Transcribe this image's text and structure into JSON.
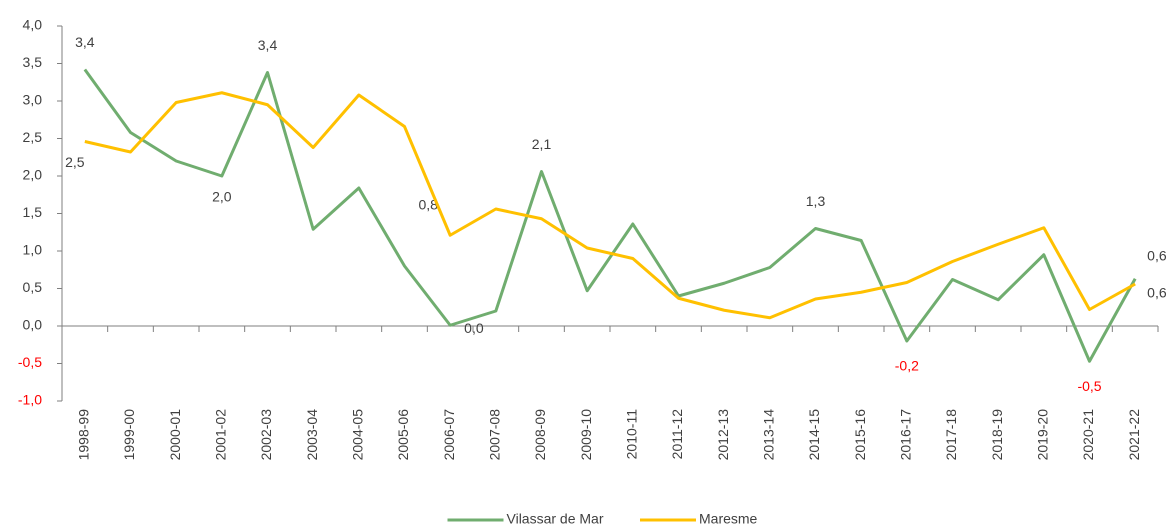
{
  "chart_data": {
    "type": "line",
    "categories": [
      "1998-99",
      "1999-00",
      "2000-01",
      "2001-02",
      "2002-03",
      "2003-04",
      "2004-05",
      "2005-06",
      "2006-07",
      "2007-08",
      "2008-09",
      "2009-10",
      "2010-11",
      "2011-12",
      "2012-13",
      "2013-14",
      "2014-15",
      "2015-16",
      "2016-17",
      "2017-18",
      "2018-19",
      "2019-20",
      "2020-21",
      "2021-22"
    ],
    "series": [
      {
        "name": "Vilassar de Mar",
        "color": "#70ad6f",
        "values": [
          3.42,
          2.58,
          2.2,
          2.0,
          3.38,
          1.29,
          1.84,
          0.8,
          0.01,
          0.2,
          2.06,
          0.47,
          1.36,
          0.4,
          0.57,
          0.78,
          1.3,
          1.14,
          -0.2,
          0.62,
          0.35,
          0.95,
          -0.47,
          0.63
        ],
        "value_labels": [
          "3,4",
          null,
          null,
          "2,0",
          "3,4",
          null,
          null,
          "0,8",
          "0,0",
          null,
          "2,1",
          null,
          null,
          null,
          null,
          null,
          "1,3",
          null,
          "-0,2",
          null,
          null,
          null,
          "-0,5",
          "0,6"
        ]
      },
      {
        "name": "Maresme",
        "color": "#ffc000",
        "values": [
          2.46,
          2.32,
          2.98,
          3.11,
          2.95,
          2.38,
          3.08,
          2.66,
          1.21,
          1.56,
          1.43,
          1.04,
          0.9,
          0.37,
          0.21,
          0.11,
          0.36,
          0.45,
          0.58,
          0.86,
          1.09,
          1.31,
          0.22,
          0.56
        ],
        "value_labels": [
          "2,5",
          null,
          null,
          null,
          null,
          null,
          null,
          null,
          null,
          null,
          null,
          null,
          null,
          null,
          null,
          null,
          null,
          null,
          null,
          null,
          null,
          null,
          null,
          "0,6"
        ]
      }
    ],
    "ylim": [
      -1.0,
      4.0
    ],
    "yticks": [
      {
        "value": -1.0,
        "label": "-1,0"
      },
      {
        "value": -0.5,
        "label": "-0,5"
      },
      {
        "value": 0.0,
        "label": "0,0"
      },
      {
        "value": 0.5,
        "label": "0,5"
      },
      {
        "value": 1.0,
        "label": "1,0"
      },
      {
        "value": 1.5,
        "label": "1,5"
      },
      {
        "value": 2.0,
        "label": "2,0"
      },
      {
        "value": 2.5,
        "label": "2,5"
      },
      {
        "value": 3.0,
        "label": "3,0"
      },
      {
        "value": 3.5,
        "label": "3,5"
      },
      {
        "value": 4.0,
        "label": "4,0"
      }
    ],
    "grid": false,
    "legend": "bottom"
  }
}
